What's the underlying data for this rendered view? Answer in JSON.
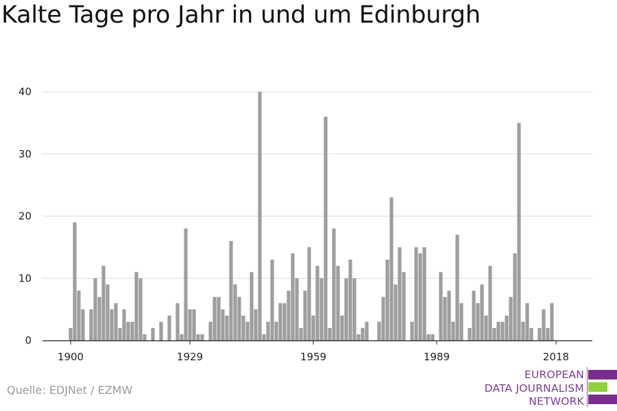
{
  "title": "Kalte Tage pro Jahr in und um Edinburgh",
  "source": "Quelle: EDJNet / EZMW",
  "logo": {
    "lines": [
      "EUROPEAN",
      "DATA JOURNALISM",
      "NETWORK"
    ],
    "colors": [
      "#7b2d8e",
      "#8fd13b",
      "#7b2d8e"
    ]
  },
  "chart_data": {
    "type": "bar",
    "title": "Kalte Tage pro Jahr in und um Edinburgh",
    "xlabel": "",
    "ylabel": "",
    "ylim": [
      0,
      40
    ],
    "yticks": [
      0,
      10,
      20,
      30,
      40
    ],
    "xticks": [
      1900,
      1929,
      1959,
      1989,
      2018
    ],
    "grid": true,
    "bar_color": "#9e9e9e",
    "x_start": 1900,
    "x_end": 2020,
    "x": [
      1900,
      1901,
      1902,
      1903,
      1904,
      1905,
      1906,
      1907,
      1908,
      1909,
      1910,
      1911,
      1912,
      1913,
      1914,
      1915,
      1916,
      1917,
      1918,
      1919,
      1920,
      1921,
      1922,
      1923,
      1924,
      1925,
      1926,
      1927,
      1928,
      1929,
      1930,
      1931,
      1932,
      1933,
      1934,
      1935,
      1936,
      1937,
      1938,
      1939,
      1940,
      1941,
      1942,
      1943,
      1944,
      1945,
      1946,
      1947,
      1948,
      1949,
      1950,
      1951,
      1952,
      1953,
      1954,
      1955,
      1956,
      1957,
      1958,
      1959,
      1960,
      1961,
      1962,
      1963,
      1964,
      1965,
      1966,
      1967,
      1968,
      1969,
      1970,
      1971,
      1972,
      1973,
      1974,
      1975,
      1976,
      1977,
      1978,
      1979,
      1980,
      1981,
      1982,
      1983,
      1984,
      1985,
      1986,
      1987,
      1988,
      1989,
      1990,
      1991,
      1992,
      1993,
      1994,
      1995,
      1996,
      1997,
      1998,
      1999,
      2000,
      2001,
      2002,
      2003,
      2004,
      2005,
      2006,
      2007,
      2008,
      2009,
      2010,
      2011,
      2012,
      2013,
      2014,
      2015,
      2016,
      2017,
      2018
    ],
    "values": [
      2,
      19,
      8,
      5,
      0,
      5,
      10,
      7,
      12,
      9,
      5,
      6,
      2,
      5,
      3,
      3,
      11,
      10,
      1,
      0,
      2,
      0,
      3,
      0,
      4,
      0,
      6,
      1,
      18,
      5,
      5,
      1,
      1,
      0,
      3,
      7,
      7,
      5,
      4,
      16,
      9,
      7,
      4,
      3,
      11,
      5,
      40,
      1,
      3,
      13,
      3,
      6,
      6,
      8,
      14,
      10,
      2,
      8,
      15,
      4,
      12,
      10,
      36,
      2,
      18,
      12,
      4,
      10,
      13,
      10,
      1,
      2,
      3,
      0,
      0,
      3,
      7,
      13,
      23,
      9,
      15,
      11,
      0,
      3,
      15,
      14,
      15,
      1,
      1,
      0,
      11,
      7,
      8,
      3,
      17,
      6,
      0,
      2,
      8,
      6,
      9,
      4,
      12,
      2,
      3,
      3,
      4,
      7,
      14,
      35,
      3,
      6,
      2,
      0,
      2,
      5,
      2,
      6,
      0
    ]
  }
}
